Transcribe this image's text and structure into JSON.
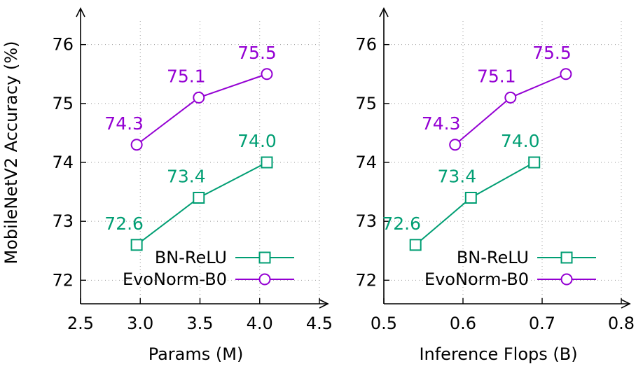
{
  "shared": {
    "ylabel": "MobileNetV2 Accuracy (%)",
    "ylim": [
      71.6,
      76.4
    ],
    "yticks": [
      72,
      73,
      74,
      75,
      76
    ],
    "ytick_labels": [
      "72",
      "73",
      "74",
      "75",
      "76"
    ]
  },
  "chart_data": [
    {
      "type": "line",
      "xlabel": "Params (M)",
      "xlim": [
        2.5,
        4.5
      ],
      "xticks": [
        2.5,
        3.0,
        3.5,
        4.0,
        4.5
      ],
      "xtick_labels": [
        "2.5",
        "3.0",
        "3.5",
        "4.0",
        "4.5"
      ],
      "grid": true,
      "legend": "bottom-right",
      "series": [
        {
          "name": "BN-ReLU",
          "color": "#009e73",
          "marker": "square",
          "x": [
            2.97,
            3.49,
            4.06
          ],
          "values": [
            72.6,
            73.4,
            74.0
          ],
          "labels": [
            "72.6",
            "73.4",
            "74.0"
          ]
        },
        {
          "name": "EvoNorm-B0",
          "color": "#9400d3",
          "marker": "circle",
          "x": [
            2.97,
            3.49,
            4.06
          ],
          "values": [
            74.3,
            75.1,
            75.5
          ],
          "labels": [
            "74.3",
            "75.1",
            "75.5"
          ]
        }
      ]
    },
    {
      "type": "line",
      "xlabel": "Inference Flops (B)",
      "xlim": [
        0.5,
        0.8
      ],
      "xticks": [
        0.5,
        0.6,
        0.7,
        0.8
      ],
      "xtick_labels": [
        "0.5",
        "0.6",
        "0.7",
        "0.8"
      ],
      "grid": true,
      "legend": "bottom-right",
      "series": [
        {
          "name": "BN-ReLU",
          "color": "#009e73",
          "marker": "square",
          "x": [
            0.54,
            0.61,
            0.69
          ],
          "values": [
            72.6,
            73.4,
            74.0
          ],
          "labels": [
            "72.6",
            "73.4",
            "74.0"
          ]
        },
        {
          "name": "EvoNorm-B0",
          "color": "#9400d3",
          "marker": "circle",
          "x": [
            0.59,
            0.66,
            0.73
          ],
          "values": [
            74.3,
            75.1,
            75.5
          ],
          "labels": [
            "74.3",
            "75.1",
            "75.5"
          ]
        }
      ]
    }
  ]
}
